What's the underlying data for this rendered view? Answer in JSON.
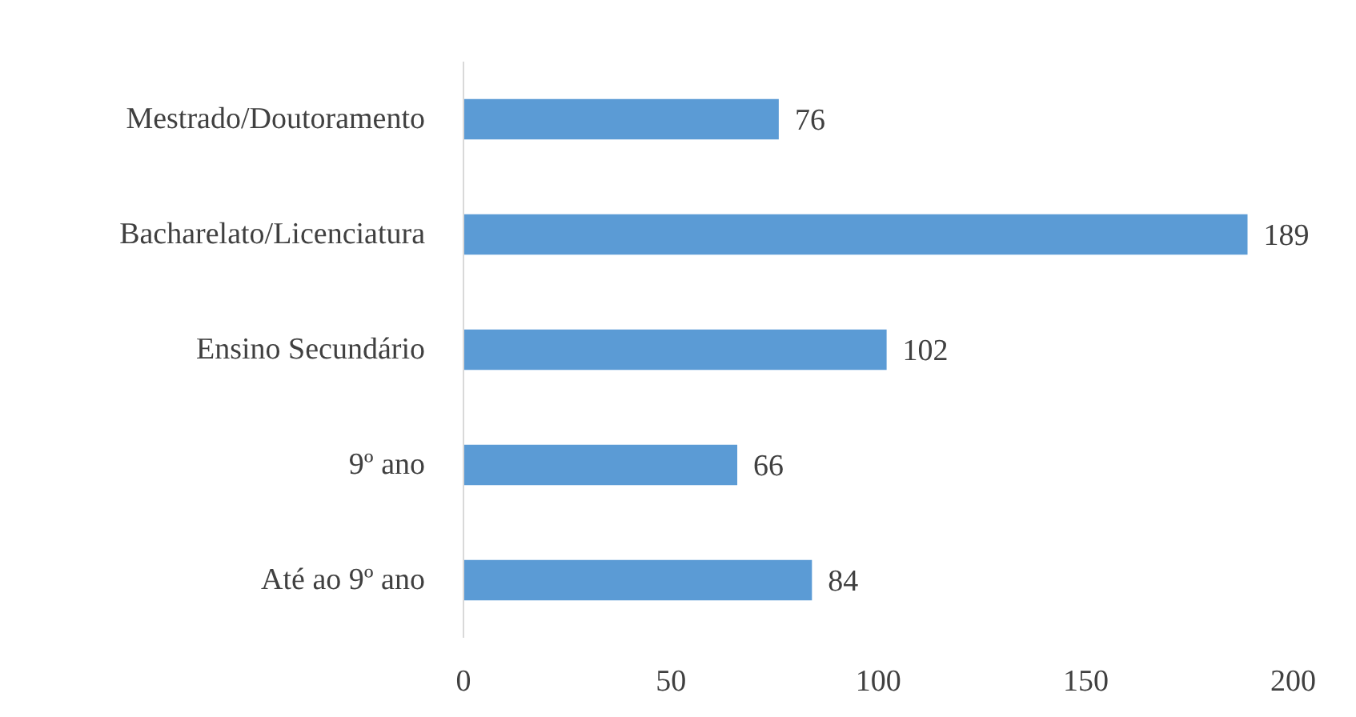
{
  "chart_data": {
    "type": "bar",
    "orientation": "horizontal",
    "categories": [
      "Mestrado/Doutoramento",
      "Bacharelato/Licenciatura",
      "Ensino Secundário",
      "9º ano",
      "Até ao 9º ano"
    ],
    "values": [
      76,
      189,
      102,
      66,
      84
    ],
    "color": "#5b9bd5",
    "xlim": [
      0,
      200
    ],
    "xticks": [
      0,
      50,
      100,
      150,
      200
    ],
    "grid": false,
    "data_labels": true
  }
}
